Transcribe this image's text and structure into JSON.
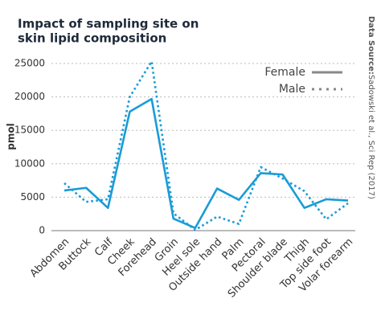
{
  "chart_data": {
    "type": "line",
    "title": [
      "Impact of sampling site on",
      "skin lipid composition"
    ],
    "y_label": "pmol",
    "source_label": "Data Source:",
    "source_text": "Sadowski et al., Sci Rep (2017)",
    "categories": [
      "Abdomen",
      "Buttock",
      "Calf",
      "Cheek",
      "Forehead",
      "Groin",
      "Heel sole",
      "Outside hand",
      "Palm",
      "Pectoral",
      "Shoulder blade",
      "Thigh",
      "Top side foot",
      "Volar forearm"
    ],
    "series": [
      {
        "name": "Female",
        "color": "#1a9bd7",
        "dash": "solid",
        "values": [
          6000,
          6400,
          3400,
          17800,
          19700,
          1800,
          400,
          6300,
          4600,
          8600,
          8400,
          3400,
          4700,
          4500
        ]
      },
      {
        "name": "Male",
        "color": "#1a9bd7",
        "dash": "dotted",
        "values": [
          7100,
          4300,
          4700,
          20000,
          25300,
          2600,
          100,
          2100,
          1000,
          9500,
          7800,
          5900,
          1700,
          4100
        ]
      }
    ],
    "legend_color": "#888888",
    "legend_position": "top-right",
    "ylim": [
      0,
      25000
    ],
    "yticks": [
      0,
      5000,
      10000,
      15000,
      20000,
      25000
    ],
    "grid": true
  }
}
